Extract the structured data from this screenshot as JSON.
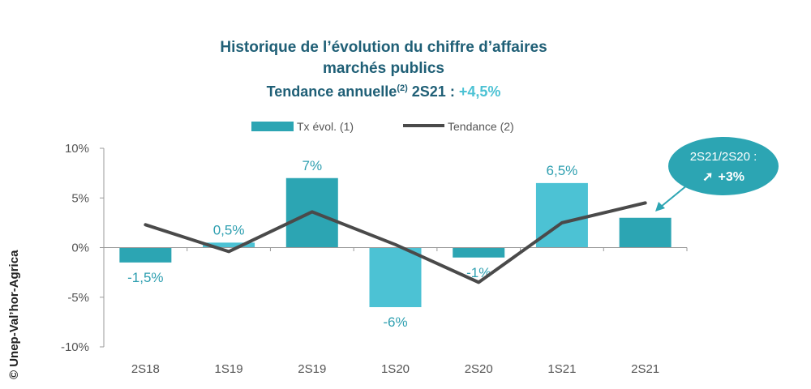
{
  "chart_data": {
    "type": "bar",
    "title_line1": "Historique de l’évolution du chiffre d’affaires",
    "title_line2": "marchés publics",
    "title_line3_prefix": "Tendance annuelle",
    "title_line3_superscript": "(2)",
    "title_line3_period": " 2S21 : ",
    "title_line3_value": "+4,5%",
    "categories": [
      "2S18",
      "1S19",
      "2S19",
      "1S20",
      "2S20",
      "1S21",
      "2S21"
    ],
    "series": [
      {
        "name": "Tx évol. (1)",
        "type": "bar",
        "values": [
          -1.5,
          0.5,
          7,
          -6,
          -1,
          6.5,
          3
        ],
        "labels": [
          "-1,5%",
          "0,5%",
          "7%",
          "-6%",
          "-1%",
          "6,5%",
          ""
        ],
        "colors": [
          "#2ca5b3",
          "#4cc2d4",
          "#2ca5b3",
          "#4cc2d4",
          "#2ca5b3",
          "#4cc2d4",
          "#2ca5b3"
        ]
      },
      {
        "name": "Tendance (2)",
        "type": "line",
        "values": [
          2.3,
          -0.4,
          3.6,
          0.3,
          -3.5,
          2.5,
          4.5
        ],
        "color": "#4a4a4a"
      }
    ],
    "ylim": [
      -10,
      10
    ],
    "yticks": [
      -10,
      -5,
      0,
      5,
      10
    ],
    "ytick_labels": [
      "-10%",
      "-5%",
      "0%",
      "5%",
      "10%"
    ],
    "xlabel": "",
    "ylabel": "",
    "legend_position": "top",
    "grid": false,
    "callout": {
      "line1": "2S21/2S20 :",
      "arrow": "➚",
      "value": "+3%",
      "color": "#2ca5b3"
    }
  },
  "copyright": "© Unep-Val’hor-Agrica"
}
